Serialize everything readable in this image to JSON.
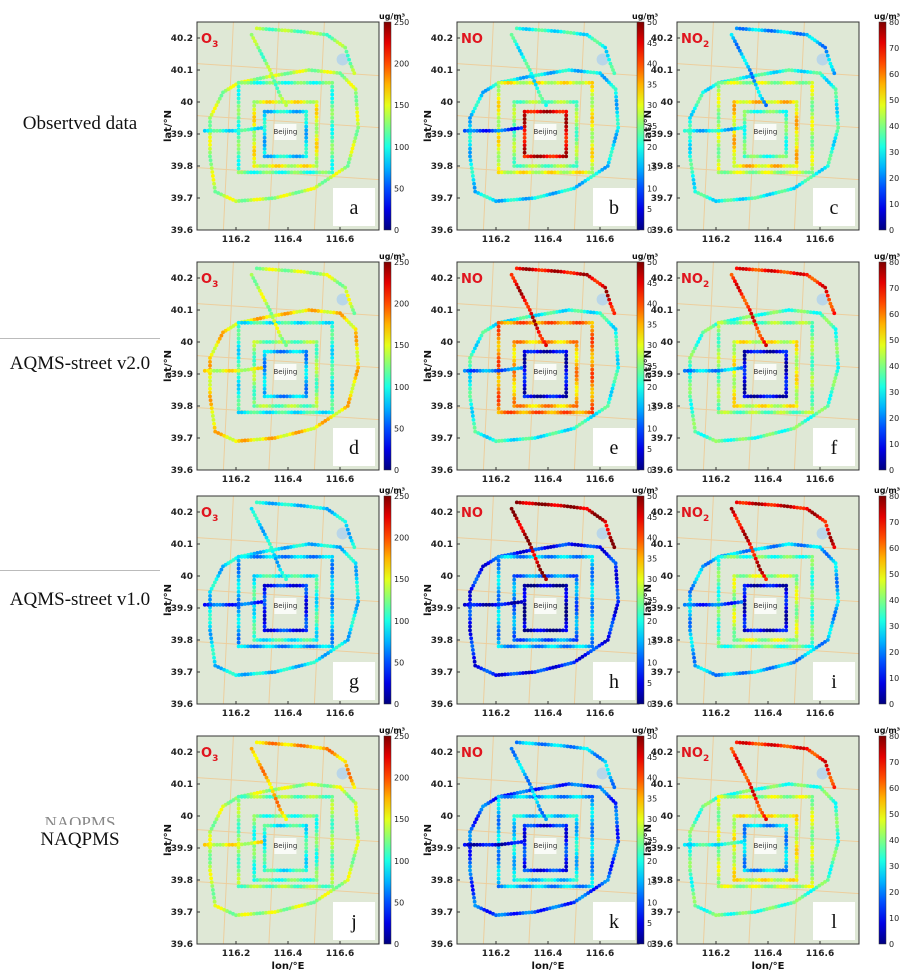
{
  "rows": [
    {
      "label": "Obsertved data"
    },
    {
      "label": "AQMS-street v2.0"
    },
    {
      "label": "AQMS-street v1.0"
    },
    {
      "label": "NAQPMS",
      "ghost_label": "NAQPMS"
    }
  ],
  "columns": [
    {
      "pollutant": "O",
      "subscript": "3",
      "cbar_max": 250,
      "cbar_ticks": [
        0,
        50,
        100,
        150,
        200,
        250
      ]
    },
    {
      "pollutant": "NO",
      "subscript": "",
      "cbar_max": 50,
      "cbar_ticks": [
        0,
        5,
        10,
        15,
        20,
        25,
        30,
        35,
        40,
        45,
        50
      ]
    },
    {
      "pollutant": "NO",
      "subscript": "2",
      "cbar_max": 80,
      "cbar_ticks": [
        0,
        10,
        20,
        30,
        40,
        50,
        60,
        70,
        80
      ]
    }
  ],
  "panel_letters": [
    "a",
    "b",
    "c",
    "d",
    "e",
    "f",
    "g",
    "h",
    "i",
    "j",
    "k",
    "l"
  ],
  "axes": {
    "xlabel": "lon/°E",
    "ylabel": "lat/°N",
    "xticks": [
      "116.2",
      "116.4",
      "116.6"
    ],
    "yticks": [
      "39.6",
      "39.7",
      "39.8",
      "39.9",
      "40",
      "40.1",
      "40.2"
    ],
    "unit": "ug/m³",
    "city_label": "Beijing"
  },
  "colors": {
    "map_bg": "#dfe8d6",
    "road": "#f0c890",
    "water": "#b9d6e8"
  },
  "panel_levels": [
    [
      0.55,
      0.45,
      0.6,
      0.35,
      0.4,
      0.5
    ],
    [
      0.35,
      0.6,
      0.5,
      0.9,
      0.2,
      0.4
    ],
    [
      0.4,
      0.55,
      0.65,
      0.45,
      0.35,
      0.3
    ],
    [
      0.65,
      0.4,
      0.5,
      0.3,
      0.6,
      0.55
    ],
    [
      0.4,
      0.75,
      0.7,
      0.1,
      0.25,
      0.9
    ],
    [
      0.45,
      0.5,
      0.6,
      0.1,
      0.3,
      0.85
    ],
    [
      0.35,
      0.3,
      0.4,
      0.15,
      0.2,
      0.35
    ],
    [
      0.15,
      0.3,
      0.25,
      0.05,
      0.1,
      0.95
    ],
    [
      0.3,
      0.45,
      0.55,
      0.1,
      0.2,
      0.9
    ],
    [
      0.55,
      0.5,
      0.45,
      0.4,
      0.6,
      0.7
    ],
    [
      0.2,
      0.3,
      0.35,
      0.15,
      0.1,
      0.3
    ],
    [
      0.45,
      0.55,
      0.6,
      0.3,
      0.4,
      0.85
    ]
  ]
}
